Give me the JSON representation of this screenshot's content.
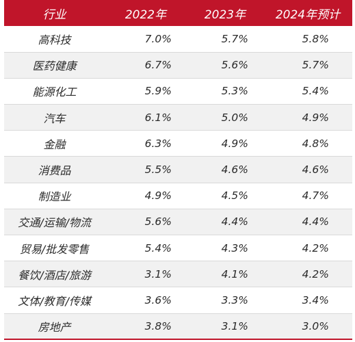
{
  "header": {
    "industry": "行业",
    "y2022": "2022年",
    "y2023": "2023年",
    "y2024": "2024年预计"
  },
  "colors": {
    "header_bg": "#c0152a",
    "stripe": "#f1f1f1",
    "text": "#2b2b2b"
  },
  "rows": [
    {
      "industry": "高科技",
      "y2022": "7.0%",
      "y2023": "5.7%",
      "y2024": "5.8%"
    },
    {
      "industry": "医药健康",
      "y2022": "6.7%",
      "y2023": "5.6%",
      "y2024": "5.7%"
    },
    {
      "industry": "能源化工",
      "y2022": "5.9%",
      "y2023": "5.3%",
      "y2024": "5.4%"
    },
    {
      "industry": "汽车",
      "y2022": "6.1%",
      "y2023": "5.0%",
      "y2024": "4.9%"
    },
    {
      "industry": "金融",
      "y2022": "6.3%",
      "y2023": "4.9%",
      "y2024": "4.8%"
    },
    {
      "industry": "消费品",
      "y2022": "5.5%",
      "y2023": "4.6%",
      "y2024": "4.6%"
    },
    {
      "industry": "制造业",
      "y2022": "4.9%",
      "y2023": "4.5%",
      "y2024": "4.7%"
    },
    {
      "industry": "交通/运输/物流",
      "y2022": "5.6%",
      "y2023": "4.4%",
      "y2024": "4.4%"
    },
    {
      "industry": "贸易/批发零售",
      "y2022": "5.4%",
      "y2023": "4.3%",
      "y2024": "4.2%"
    },
    {
      "industry": "餐饮/酒店/旅游",
      "y2022": "3.1%",
      "y2023": "4.1%",
      "y2024": "4.2%"
    },
    {
      "industry": "文体/教育/传媒",
      "y2022": "3.6%",
      "y2023": "3.3%",
      "y2024": "3.4%"
    },
    {
      "industry": "房地产",
      "y2022": "3.8%",
      "y2023": "3.1%",
      "y2024": "3.0%"
    }
  ]
}
